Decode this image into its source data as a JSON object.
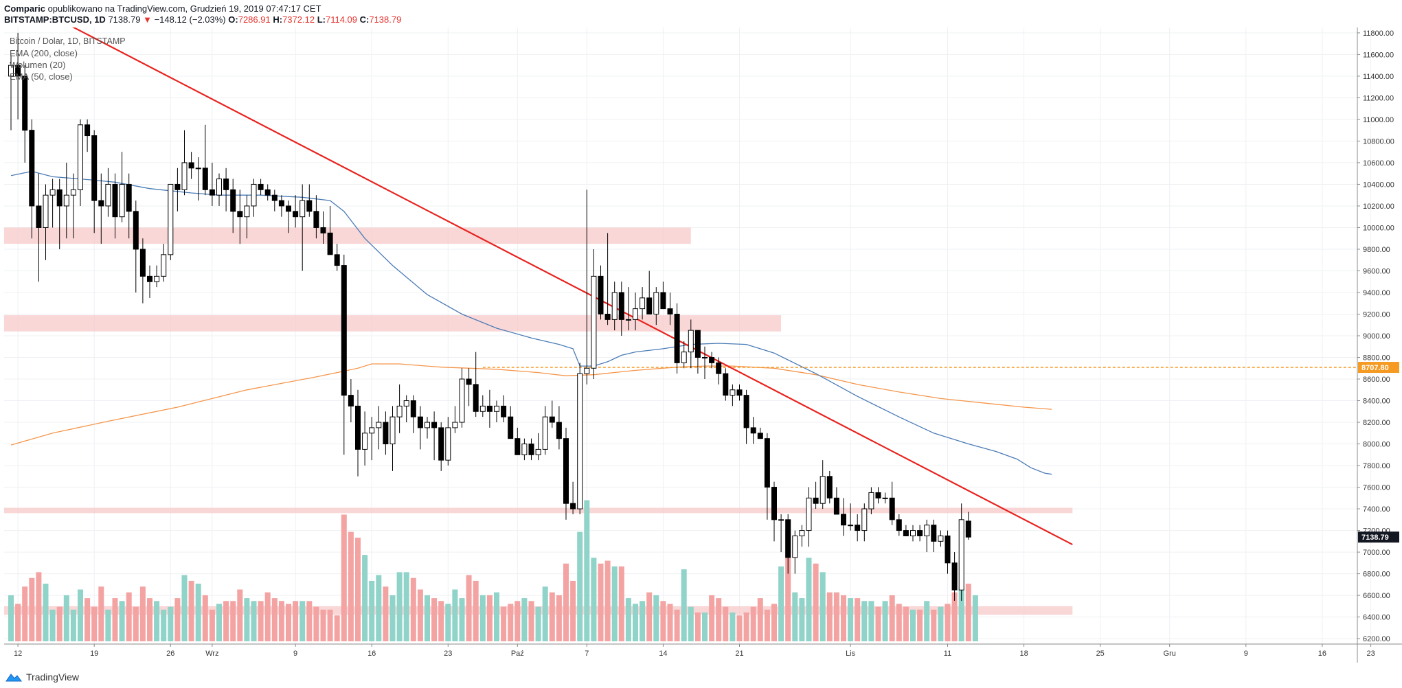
{
  "header": {
    "line1_brand": "Comparic",
    "line1_rest": " opublikowano na TradingView.com, Grudzień 19, 2019 07:47:17 CET",
    "symbol": "BITSTAMP:BTCUSD, 1D",
    "last": "7138.79",
    "arrow": "▼",
    "change": "−148.12 (−2.03%)",
    "o_label": "O:",
    "o": "7286.91",
    "h_label": "H:",
    "h": "7372.12",
    "l_label": "L:",
    "l": "7114.09",
    "c_label": "C:",
    "c": "7138.79"
  },
  "legend": {
    "title": "Bitcoin / Dolar, 1D, BITSTAMP",
    "ema200": "EMA (200, close)",
    "volume": "Wolumen (20)",
    "ema50": "EMA (50, close)"
  },
  "footer": {
    "brand": "TradingView"
  },
  "colors": {
    "up": "#ffffff",
    "down": "#000000",
    "wick": "#000000",
    "vol_up": "#8fd3c9",
    "vol_down": "#f4a3a3",
    "ema50": "#4a7bb5",
    "ema200": "#f5954a",
    "trendline": "#e8231f",
    "zone": "#f7c9c9",
    "level": "#f59a23",
    "axis_text": "#333333",
    "grid": "#eef0f3"
  },
  "chart_data": {
    "type": "candlestick",
    "symbol": "BITSTAMP:BTCUSD",
    "timeframe": "1D",
    "y_axis": {
      "min": 6150,
      "max": 11850,
      "ticks": [
        "6200.00",
        "6400.00",
        "6600.00",
        "6800.00",
        "7000.00",
        "7200.00",
        "7400.00",
        "7600.00",
        "7800.00",
        "8000.00",
        "8200.00",
        "8400.00",
        "8600.00",
        "8800.00",
        "9000.00",
        "9200.00",
        "9400.00",
        "9600.00",
        "9800.00",
        "10000.00",
        "10200.00",
        "10400.00",
        "10600.00",
        "10800.00",
        "11000.00",
        "11200.00",
        "11400.00",
        "11600.00",
        "11800.00"
      ]
    },
    "x_axis": {
      "ticks": [
        {
          "i": 1,
          "label": "12"
        },
        {
          "i": 12,
          "label": "19"
        },
        {
          "i": 23,
          "label": "26"
        },
        {
          "i": 29,
          "label": "Wrz"
        },
        {
          "i": 41,
          "label": "9"
        },
        {
          "i": 52,
          "label": "16"
        },
        {
          "i": 63,
          "label": "23"
        },
        {
          "i": 73,
          "label": "Paź"
        },
        {
          "i": 83,
          "label": "7"
        },
        {
          "i": 94,
          "label": "14"
        },
        {
          "i": 105,
          "label": "21"
        },
        {
          "i": 121,
          "label": "Lis"
        },
        {
          "i": 135,
          "label": "11"
        },
        {
          "i": 146,
          "label": "18"
        },
        {
          "i": 157,
          "label": "25"
        },
        {
          "i": 167,
          "label": "Gru"
        },
        {
          "i": 178,
          "label": "9"
        },
        {
          "i": 189,
          "label": "16"
        },
        {
          "i": 196,
          "label": "23"
        }
      ]
    },
    "candles": [
      [
        11400,
        11600,
        10900,
        11500
      ],
      [
        11500,
        11800,
        11000,
        11400
      ],
      [
        11400,
        11500,
        10600,
        10900
      ],
      [
        10900,
        11000,
        9900,
        10200
      ],
      [
        10200,
        10500,
        9500,
        10000
      ],
      [
        10000,
        10400,
        9700,
        10300
      ],
      [
        10300,
        10450,
        10000,
        10350
      ],
      [
        10350,
        10450,
        9800,
        10200
      ],
      [
        10200,
        10600,
        9900,
        10300
      ],
      [
        10300,
        10500,
        9900,
        10350
      ],
      [
        10350,
        11000,
        10200,
        10950
      ],
      [
        10950,
        11000,
        10700,
        10850
      ],
      [
        10850,
        10900,
        9950,
        10250
      ],
      [
        10250,
        10500,
        9850,
        10200
      ],
      [
        10200,
        10550,
        10100,
        10400
      ],
      [
        10400,
        10500,
        9900,
        10100
      ],
      [
        10100,
        10700,
        10050,
        10400
      ],
      [
        10400,
        10500,
        9900,
        10150
      ],
      [
        10150,
        10250,
        9400,
        9800
      ],
      [
        9800,
        9900,
        9300,
        9550
      ],
      [
        9550,
        9650,
        9350,
        9500
      ],
      [
        9500,
        9650,
        9450,
        9550
      ],
      [
        9550,
        9850,
        9500,
        9750
      ],
      [
        9750,
        10400,
        9700,
        10400
      ],
      [
        10400,
        10550,
        10150,
        10350
      ],
      [
        10350,
        10900,
        10300,
        10600
      ],
      [
        10600,
        10700,
        10450,
        10550
      ],
      [
        10550,
        10650,
        10250,
        10550
      ],
      [
        10550,
        10950,
        10300,
        10350
      ],
      [
        10350,
        10600,
        10200,
        10300
      ],
      [
        10300,
        10500,
        10200,
        10450
      ],
      [
        10450,
        10550,
        10150,
        10350
      ],
      [
        10350,
        10450,
        9950,
        10150
      ],
      [
        10150,
        10350,
        9850,
        10100
      ],
      [
        10100,
        10300,
        9900,
        10200
      ],
      [
        10200,
        10450,
        10100,
        10400
      ],
      [
        10400,
        10450,
        10300,
        10350
      ],
      [
        10350,
        10400,
        10250,
        10300
      ],
      [
        10300,
        10350,
        10150,
        10250
      ],
      [
        10250,
        10300,
        10100,
        10200
      ],
      [
        10200,
        10250,
        9950,
        10150
      ],
      [
        10150,
        10300,
        10000,
        10100
      ],
      [
        10100,
        10400,
        9600,
        10250
      ],
      [
        10250,
        10400,
        10100,
        10150
      ],
      [
        10150,
        10300,
        9900,
        10000
      ],
      [
        10000,
        10150,
        9850,
        9950
      ],
      [
        9950,
        10200,
        9750,
        9750
      ],
      [
        9750,
        9850,
        9600,
        9650
      ],
      [
        9650,
        9750,
        7900,
        8450
      ],
      [
        8450,
        8600,
        8200,
        8350
      ],
      [
        8350,
        8500,
        7700,
        7950
      ],
      [
        7950,
        8300,
        7800,
        8100
      ],
      [
        8100,
        8250,
        7850,
        8150
      ],
      [
        8150,
        8350,
        7950,
        8200
      ],
      [
        8200,
        8300,
        7900,
        8000
      ],
      [
        8000,
        8350,
        7750,
        8250
      ],
      [
        8250,
        8550,
        8100,
        8350
      ],
      [
        8350,
        8450,
        8200,
        8400
      ],
      [
        8400,
        8450,
        8100,
        8250
      ],
      [
        8250,
        8350,
        7950,
        8150
      ],
      [
        8150,
        8250,
        8050,
        8200
      ],
      [
        8200,
        8300,
        7850,
        8150
      ],
      [
        8150,
        8200,
        7750,
        7850
      ],
      [
        7850,
        8250,
        7800,
        8150
      ],
      [
        8150,
        8350,
        8100,
        8200
      ],
      [
        8200,
        8700,
        8150,
        8600
      ],
      [
        8600,
        8700,
        8350,
        8550
      ],
      [
        8550,
        8850,
        8250,
        8300
      ],
      [
        8300,
        8450,
        8250,
        8350
      ],
      [
        8350,
        8500,
        8150,
        8300
      ],
      [
        8300,
        8400,
        8200,
        8350
      ],
      [
        8350,
        8450,
        8200,
        8250
      ],
      [
        8250,
        8350,
        8050,
        8050
      ],
      [
        8050,
        8150,
        7900,
        7900
      ],
      [
        7900,
        8050,
        7850,
        8000
      ],
      [
        8000,
        8050,
        7850,
        7900
      ],
      [
        7900,
        8100,
        7850,
        7950
      ],
      [
        7950,
        8350,
        7900,
        8250
      ],
      [
        8250,
        8400,
        8150,
        8200
      ],
      [
        8200,
        8350,
        7950,
        8050
      ],
      [
        8050,
        8150,
        7300,
        7450
      ],
      [
        7450,
        7650,
        7350,
        7400
      ],
      [
        7400,
        8750,
        7350,
        8650
      ],
      [
        8650,
        10350,
        8550,
        8700
      ],
      [
        8700,
        9800,
        8600,
        9550
      ],
      [
        9550,
        9650,
        9150,
        9200
      ],
      [
        9200,
        9950,
        9100,
        9150
      ],
      [
        9150,
        9500,
        9050,
        9400
      ],
      [
        9400,
        9500,
        9000,
        9150
      ],
      [
        9150,
        9450,
        9050,
        9150
      ],
      [
        9150,
        9400,
        9050,
        9250
      ],
      [
        9250,
        9450,
        9150,
        9350
      ],
      [
        9350,
        9600,
        9200,
        9200
      ],
      [
        9200,
        9450,
        9100,
        9400
      ],
      [
        9400,
        9500,
        9300,
        9250
      ],
      [
        9250,
        9400,
        9100,
        9200
      ],
      [
        9200,
        9300,
        8650,
        8750
      ],
      [
        8750,
        8950,
        8700,
        8850
      ],
      [
        8850,
        9150,
        8700,
        9050
      ],
      [
        9050,
        9050,
        8650,
        8800
      ],
      [
        8800,
        8900,
        8600,
        8800
      ],
      [
        8800,
        8850,
        8700,
        8750
      ],
      [
        8750,
        8800,
        8550,
        8650
      ],
      [
        8650,
        8700,
        8400,
        8450
      ],
      [
        8450,
        8550,
        8350,
        8500
      ],
      [
        8500,
        8550,
        8400,
        8450
      ],
      [
        8450,
        8500,
        8000,
        8150
      ],
      [
        8150,
        8250,
        8000,
        8100
      ],
      [
        8100,
        8150,
        8050,
        8050
      ],
      [
        8050,
        8100,
        7300,
        7600
      ],
      [
        7600,
        7650,
        7100,
        7300
      ],
      [
        7300,
        7350,
        7000,
        7300
      ],
      [
        7300,
        7350,
        6800,
        6950
      ],
      [
        6950,
        7200,
        6800,
        7150
      ],
      [
        7150,
        7250,
        7050,
        7200
      ],
      [
        7200,
        7600,
        7050,
        7500
      ],
      [
        7500,
        7650,
        7400,
        7450
      ],
      [
        7450,
        7850,
        7400,
        7700
      ],
      [
        7700,
        7750,
        7450,
        7500
      ],
      [
        7500,
        7600,
        7350,
        7350
      ],
      [
        7350,
        7500,
        7150,
        7250
      ],
      [
        7250,
        7450,
        7200,
        7250
      ],
      [
        7250,
        7350,
        7100,
        7200
      ],
      [
        7200,
        7450,
        7100,
        7400
      ],
      [
        7400,
        7600,
        7350,
        7550
      ],
      [
        7550,
        7600,
        7450,
        7500
      ],
      [
        7500,
        7550,
        7450,
        7500
      ],
      [
        7500,
        7650,
        7250,
        7300
      ],
      [
        7300,
        7350,
        7150,
        7200
      ],
      [
        7200,
        7250,
        7150,
        7150
      ],
      [
        7150,
        7250,
        7100,
        7200
      ],
      [
        7200,
        7250,
        7100,
        7150
      ],
      [
        7150,
        7300,
        7000,
        7250
      ],
      [
        7250,
        7300,
        7000,
        7100
      ],
      [
        7100,
        7200,
        7050,
        7150
      ],
      [
        7150,
        7200,
        6800,
        6900
      ],
      [
        6900,
        7000,
        6550,
        6650
      ],
      [
        6650,
        7450,
        6550,
        7300
      ],
      [
        7286.91,
        7372.12,
        7114.09,
        7138.79
      ]
    ],
    "candle_start_index": 0,
    "volume": {
      "values": [
        160,
        130,
        190,
        220,
        240,
        200,
        110,
        120,
        160,
        110,
        180,
        150,
        120,
        190,
        110,
        150,
        140,
        170,
        120,
        190,
        150,
        140,
        110,
        120,
        150,
        230,
        210,
        200,
        160,
        110,
        130,
        140,
        140,
        180,
        150,
        140,
        140,
        170,
        150,
        140,
        130,
        140,
        140,
        140,
        120,
        110,
        110,
        90,
        440,
        380,
        360,
        300,
        210,
        230,
        190,
        160,
        240,
        240,
        220,
        180,
        160,
        150,
        140,
        130,
        180,
        150,
        230,
        210,
        160,
        160,
        170,
        120,
        130,
        140,
        150,
        140,
        120,
        190,
        170,
        160,
        270,
        210,
        380,
        490,
        290,
        270,
        280,
        260,
        260,
        150,
        130,
        140,
        170,
        160,
        140,
        130,
        110,
        250,
        120,
        100,
        100,
        160,
        150,
        120,
        100,
        90,
        100,
        120,
        150,
        110,
        130,
        260,
        380,
        170,
        150,
        290,
        270,
        240,
        170,
        170,
        160,
        150,
        150,
        140,
        140,
        120,
        140,
        160,
        130,
        120,
        110,
        110,
        140,
        110,
        120,
        130,
        170,
        190,
        200,
        160
      ]
    },
    "ema50": [
      [
        0,
        10480
      ],
      [
        3,
        10520
      ],
      [
        6,
        10470
      ],
      [
        10,
        10450
      ],
      [
        15,
        10420
      ],
      [
        20,
        10360
      ],
      [
        26,
        10320
      ],
      [
        30,
        10300
      ],
      [
        36,
        10300
      ],
      [
        42,
        10280
      ],
      [
        46,
        10250
      ],
      [
        48,
        10150
      ],
      [
        51,
        9900
      ],
      [
        55,
        9650
      ],
      [
        60,
        9380
      ],
      [
        65,
        9200
      ],
      [
        70,
        9070
      ],
      [
        75,
        8980
      ],
      [
        79,
        8920
      ],
      [
        81,
        8880
      ],
      [
        82,
        8720
      ],
      [
        84,
        8720
      ],
      [
        86,
        8760
      ],
      [
        88,
        8820
      ],
      [
        90,
        8850
      ],
      [
        94,
        8880
      ],
      [
        98,
        8920
      ],
      [
        102,
        8930
      ],
      [
        106,
        8920
      ],
      [
        110,
        8840
      ],
      [
        116,
        8650
      ],
      [
        122,
        8440
      ],
      [
        128,
        8250
      ],
      [
        133,
        8100
      ],
      [
        138,
        8000
      ],
      [
        142,
        7930
      ],
      [
        145,
        7860
      ],
      [
        147,
        7780
      ],
      [
        149,
        7730
      ],
      [
        150,
        7720
      ]
    ],
    "ema200": [
      [
        0,
        7990
      ],
      [
        6,
        8100
      ],
      [
        14,
        8210
      ],
      [
        24,
        8340
      ],
      [
        34,
        8500
      ],
      [
        44,
        8620
      ],
      [
        50,
        8700
      ],
      [
        52,
        8740
      ],
      [
        56,
        8740
      ],
      [
        62,
        8710
      ],
      [
        70,
        8690
      ],
      [
        76,
        8660
      ],
      [
        80,
        8630
      ],
      [
        84,
        8640
      ],
      [
        90,
        8680
      ],
      [
        96,
        8710
      ],
      [
        100,
        8720
      ],
      [
        104,
        8720
      ],
      [
        110,
        8700
      ],
      [
        116,
        8640
      ],
      [
        122,
        8550
      ],
      [
        128,
        8480
      ],
      [
        134,
        8420
      ],
      [
        140,
        8380
      ],
      [
        146,
        8340
      ],
      [
        150,
        8320
      ]
    ],
    "trendline": [
      [
        -3,
        12250
      ],
      [
        153,
        7070
      ]
    ],
    "zones": [
      {
        "x0": -1,
        "x1": 98,
        "y0": 9850,
        "y1": 10000
      },
      {
        "x0": -1,
        "x1": 111,
        "y0": 9040,
        "y1": 9190
      },
      {
        "x0": -1,
        "x1": 153,
        "y0": 7360,
        "y1": 7410
      },
      {
        "x0": -1,
        "x1": 153,
        "y0": 6420,
        "y1": 6500
      }
    ],
    "level": {
      "value": 8707.8,
      "from": 68
    },
    "labels": {
      "level": "8707.80",
      "last": "7138.79"
    }
  }
}
